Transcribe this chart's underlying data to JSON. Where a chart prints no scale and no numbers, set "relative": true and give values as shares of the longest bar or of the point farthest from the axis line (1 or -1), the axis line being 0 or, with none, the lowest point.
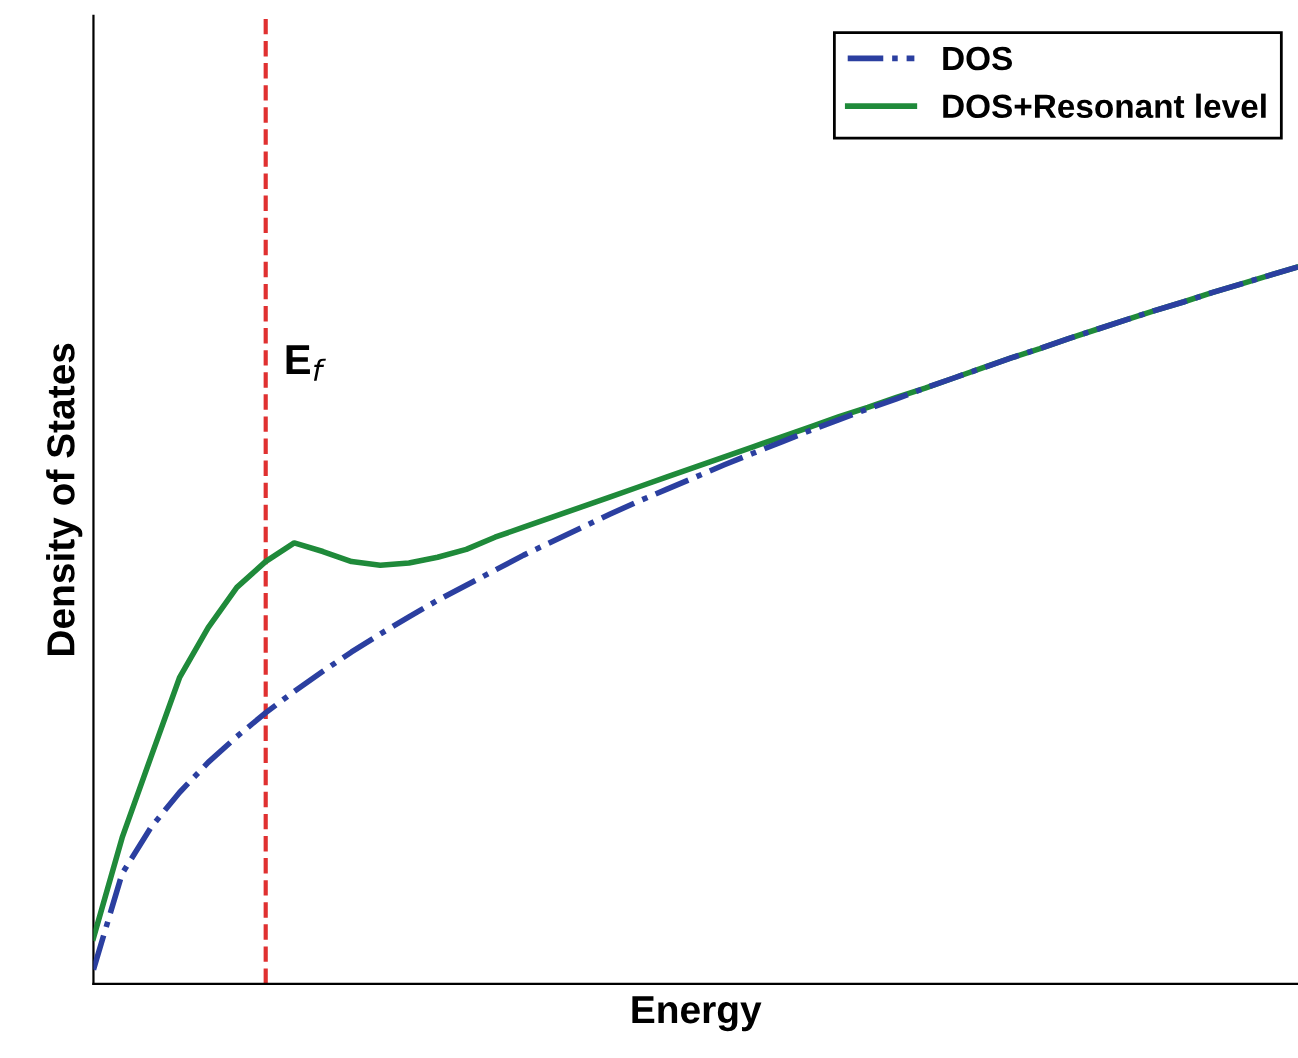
{
  "chart_data": {
    "type": "line",
    "relative": true,
    "xlabel": "Energy",
    "ylabel": "Density of States",
    "categories": [
      null,
      null,
      null,
      null,
      null,
      null,
      null,
      null,
      null,
      null,
      null,
      null,
      null,
      null,
      null,
      null,
      null,
      null,
      null,
      null,
      null,
      null,
      null,
      null,
      null,
      null,
      null,
      null,
      null,
      null,
      null,
      null,
      null,
      null,
      null,
      null,
      null,
      null,
      null,
      null,
      null,
      null,
      null
    ],
    "series": [
      {
        "name": "DOS",
        "color": "#2b3fa0",
        "line_style": "dashdot",
        "values": [
          0.02,
          0.154,
          0.218,
          0.267,
          0.309,
          0.345,
          0.378,
          0.408,
          0.436,
          0.463,
          0.488,
          0.512,
          0.535,
          0.556,
          0.577,
          0.598,
          0.617,
          0.636,
          0.655,
          0.673,
          0.69,
          0.707,
          0.724,
          0.74,
          0.756,
          0.772,
          0.787,
          0.802,
          0.816,
          0.831,
          0.845,
          0.859,
          0.873,
          0.886,
          0.9,
          0.913,
          0.926,
          0.939,
          0.951,
          0.964,
          0.976,
          0.988,
          1
        ]
      },
      {
        "name": "DOS+Resonant level",
        "color": "#1f8a3a",
        "line_style": "solid",
        "values": [
          0.064,
          0.204,
          0.316,
          0.427,
          0.497,
          0.553,
          0.589,
          0.615,
          0.603,
          0.589,
          0.584,
          0.587,
          0.595,
          0.606,
          0.623,
          0.637,
          0.651,
          0.665,
          0.679,
          0.693,
          0.707,
          0.721,
          0.735,
          0.749,
          0.763,
          0.777,
          0.791,
          0.804,
          0.818,
          0.831,
          0.845,
          0.859,
          0.873,
          0.886,
          0.9,
          0.913,
          0.926,
          0.939,
          0.951,
          0.964,
          0.976,
          0.988,
          1
        ]
      }
    ],
    "annotations": [
      "E$_{f}$"
    ],
    "legend": "top right"
  }
}
